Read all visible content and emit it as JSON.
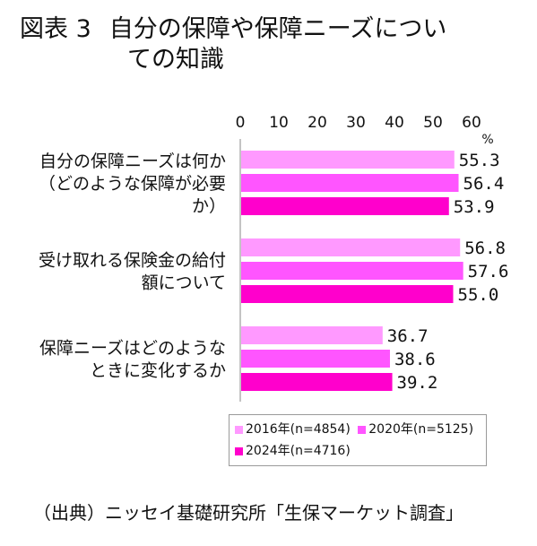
{
  "title_prefix": "図表 3",
  "title_line1": "自分の保障や保障ニーズについ",
  "title_line2": "ての知識",
  "source": "（出典）ニッセイ基礎研究所「生保マーケット調査」",
  "colors": {
    "s2016": "#ff99ff",
    "s2020": "#ff55ff",
    "s2024": "#ff00cc"
  },
  "chart_data": {
    "type": "bar",
    "orientation": "horizontal",
    "unit": "%",
    "xlim": [
      0,
      60
    ],
    "ticks": [
      0,
      10,
      20,
      30,
      40,
      50,
      60
    ],
    "tick_labels": [
      "0",
      "10",
      "20",
      "30",
      "40",
      "50",
      "60"
    ],
    "categories": [
      [
        "自分の保障ニーズは何か",
        "（どのような保障が必要",
        "か）"
      ],
      [
        "受け取れる保険金の給付",
        "額について"
      ],
      [
        "保障ニーズはどのような",
        "ときに変化するか"
      ]
    ],
    "series": [
      {
        "name": "2016年(n=4854)",
        "values": [
          55.3,
          56.8,
          36.7
        ],
        "labels": [
          "55.3",
          "56.8",
          "36.7"
        ]
      },
      {
        "name": "2020年(n=5125)",
        "values": [
          56.4,
          57.6,
          38.6
        ],
        "labels": [
          "56.4",
          "57.6",
          "38.6"
        ]
      },
      {
        "name": "2024年(n=4716)",
        "values": [
          53.9,
          55.0,
          39.2
        ],
        "labels": [
          "53.9",
          "55.0",
          "39.2"
        ]
      }
    ],
    "legend_position": "bottom-right",
    "grid": false
  }
}
